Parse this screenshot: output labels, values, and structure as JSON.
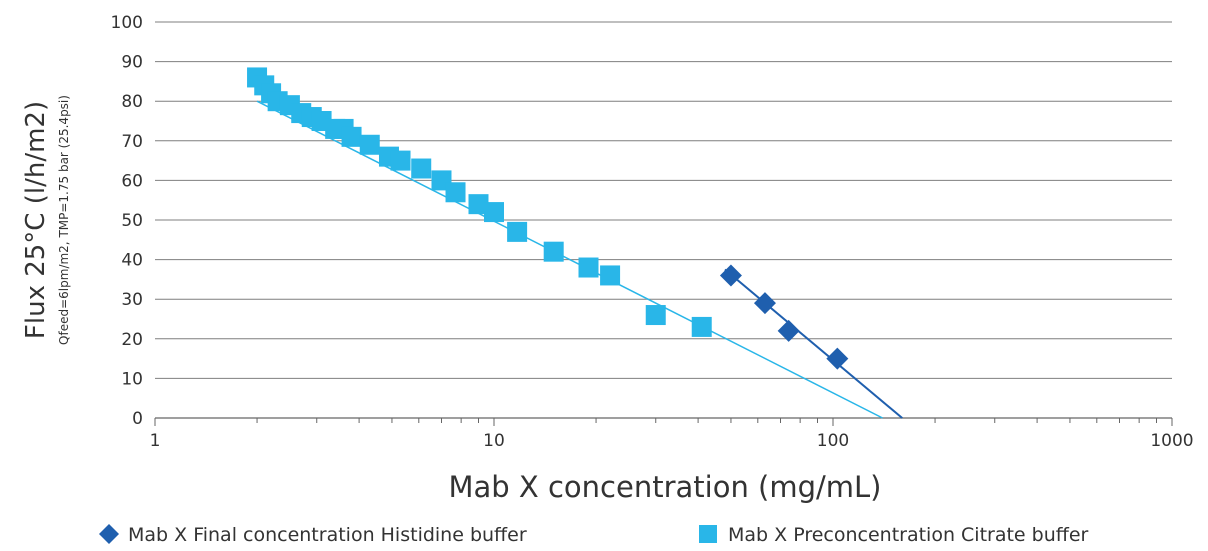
{
  "chart_data": {
    "type": "scatter",
    "title": "",
    "xlabel": "Mab X concentration (mg/mL)",
    "ylabel": "Flux  25°C (l/h/m2)",
    "ylabel_sub": "Qfeed=6lpm/m2, TMP=1.75 bar (25.4psi)",
    "xscale": "log",
    "xlim": [
      1,
      1000
    ],
    "ylim": [
      0,
      100
    ],
    "x_ticks": [
      "1",
      "10",
      "100",
      "1000"
    ],
    "y_ticks": [
      "0",
      "10",
      "20",
      "30",
      "40",
      "50",
      "60",
      "70",
      "80",
      "90",
      "100"
    ],
    "grid": "horizontal",
    "legend_position": "bottom",
    "series": [
      {
        "name": "Mab X Final concentration Histidine buffer",
        "marker": "diamond",
        "color": "#1f5fae",
        "x": [
          50,
          63,
          74,
          103
        ],
        "y": [
          36,
          29,
          22,
          15
        ],
        "trendline": {
          "x": [
            48,
            160
          ],
          "y": [
            37.5,
            0
          ]
        }
      },
      {
        "name": "Mab X Preconcentration Citrate buffer",
        "marker": "square",
        "color": "#29b6e8",
        "x": [
          2.0,
          2.1,
          2.2,
          2.3,
          2.5,
          2.7,
          2.9,
          3.1,
          3.4,
          3.6,
          3.8,
          4.3,
          4.9,
          5.3,
          6.1,
          7.0,
          7.7,
          9.0,
          10.0,
          11.7,
          15.0,
          19.0,
          22.0,
          30.0,
          41.0
        ],
        "y": [
          86,
          84,
          82,
          80,
          79,
          77,
          76,
          75,
          73,
          73,
          71,
          69,
          66,
          65,
          63,
          60,
          57,
          54,
          52,
          47,
          42,
          38,
          36,
          26,
          23
        ],
        "trendline": {
          "x": [
            2.0,
            140
          ],
          "y": [
            80,
            0
          ]
        }
      }
    ]
  }
}
